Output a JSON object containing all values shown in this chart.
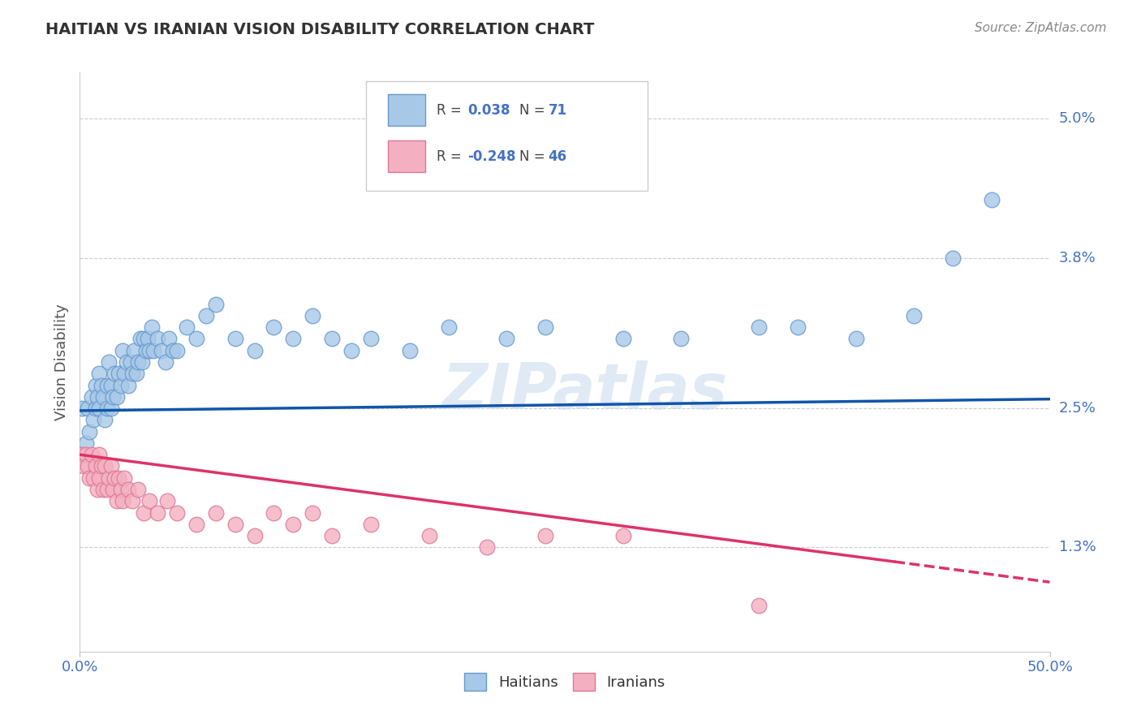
{
  "title": "HAITIAN VS IRANIAN VISION DISABILITY CORRELATION CHART",
  "source": "Source: ZipAtlas.com",
  "ylabel": "Vision Disability",
  "yticks": [
    "1.3%",
    "2.5%",
    "3.8%",
    "5.0%"
  ],
  "ytick_vals": [
    0.013,
    0.025,
    0.038,
    0.05
  ],
  "xlim": [
    0.0,
    0.5
  ],
  "ylim": [
    0.004,
    0.054
  ],
  "haitian_color": "#a8c8e8",
  "haitian_edge": "#6699cc",
  "iranian_color": "#f4b0c0",
  "iranian_edge": "#dd7799",
  "haitian_line_color": "#1155aa",
  "iranian_line_color": "#dd3366",
  "watermark": "ZIPatlas",
  "background_color": "#ffffff",
  "legend_r1": "R =  0.038",
  "legend_n1": "N = 71",
  "legend_r2": "R = -0.248",
  "legend_n2": "N = 46",
  "haitian_x": [
    0.001,
    0.003,
    0.004,
    0.005,
    0.006,
    0.007,
    0.008,
    0.008,
    0.009,
    0.01,
    0.01,
    0.011,
    0.012,
    0.013,
    0.014,
    0.014,
    0.015,
    0.016,
    0.016,
    0.017,
    0.018,
    0.019,
    0.02,
    0.021,
    0.022,
    0.023,
    0.024,
    0.025,
    0.026,
    0.027,
    0.028,
    0.029,
    0.03,
    0.031,
    0.032,
    0.033,
    0.034,
    0.035,
    0.036,
    0.037,
    0.038,
    0.04,
    0.042,
    0.044,
    0.046,
    0.048,
    0.05,
    0.055,
    0.06,
    0.065,
    0.07,
    0.08,
    0.09,
    0.1,
    0.11,
    0.12,
    0.13,
    0.14,
    0.15,
    0.17,
    0.19,
    0.22,
    0.24,
    0.28,
    0.31,
    0.35,
    0.37,
    0.4,
    0.43,
    0.45,
    0.47
  ],
  "haitian_y": [
    0.025,
    0.022,
    0.025,
    0.023,
    0.026,
    0.024,
    0.027,
    0.025,
    0.026,
    0.028,
    0.025,
    0.027,
    0.026,
    0.024,
    0.025,
    0.027,
    0.029,
    0.027,
    0.025,
    0.026,
    0.028,
    0.026,
    0.028,
    0.027,
    0.03,
    0.028,
    0.029,
    0.027,
    0.029,
    0.028,
    0.03,
    0.028,
    0.029,
    0.031,
    0.029,
    0.031,
    0.03,
    0.031,
    0.03,
    0.032,
    0.03,
    0.031,
    0.03,
    0.029,
    0.031,
    0.03,
    0.03,
    0.032,
    0.031,
    0.033,
    0.034,
    0.031,
    0.03,
    0.032,
    0.031,
    0.033,
    0.031,
    0.03,
    0.031,
    0.03,
    0.032,
    0.031,
    0.032,
    0.031,
    0.031,
    0.032,
    0.032,
    0.031,
    0.033,
    0.038,
    0.043
  ],
  "iranian_x": [
    0.001,
    0.002,
    0.003,
    0.004,
    0.005,
    0.006,
    0.007,
    0.008,
    0.009,
    0.01,
    0.01,
    0.011,
    0.012,
    0.013,
    0.014,
    0.015,
    0.016,
    0.017,
    0.018,
    0.019,
    0.02,
    0.021,
    0.022,
    0.023,
    0.025,
    0.027,
    0.03,
    0.033,
    0.036,
    0.04,
    0.045,
    0.05,
    0.06,
    0.07,
    0.08,
    0.09,
    0.1,
    0.11,
    0.12,
    0.13,
    0.15,
    0.18,
    0.21,
    0.24,
    0.28,
    0.35
  ],
  "iranian_y": [
    0.021,
    0.02,
    0.021,
    0.02,
    0.019,
    0.021,
    0.019,
    0.02,
    0.018,
    0.021,
    0.019,
    0.02,
    0.018,
    0.02,
    0.018,
    0.019,
    0.02,
    0.018,
    0.019,
    0.017,
    0.019,
    0.018,
    0.017,
    0.019,
    0.018,
    0.017,
    0.018,
    0.016,
    0.017,
    0.016,
    0.017,
    0.016,
    0.015,
    0.016,
    0.015,
    0.014,
    0.016,
    0.015,
    0.016,
    0.014,
    0.015,
    0.014,
    0.013,
    0.014,
    0.014,
    0.008
  ]
}
